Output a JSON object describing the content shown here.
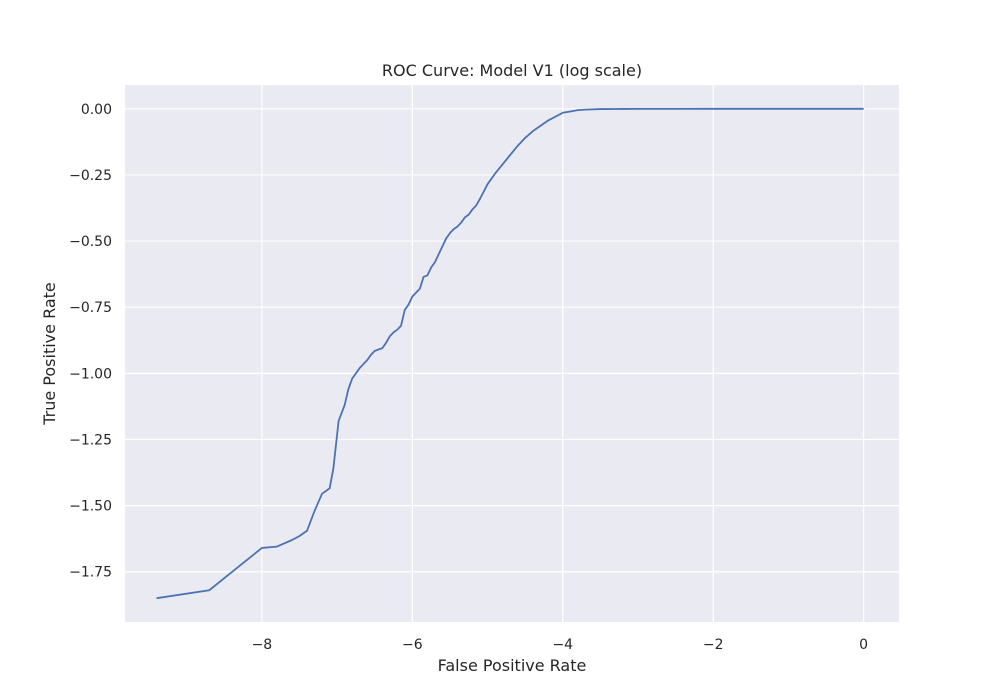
{
  "chart_data": {
    "type": "line",
    "title": "ROC Curve: Model V1 (log scale)",
    "xlabel": "False Positive Rate",
    "ylabel": "True Positive Rate",
    "xlim": [
      -9.82,
      0.47
    ],
    "ylim": [
      -1.94,
      0.09
    ],
    "xticks": [
      -8,
      -6,
      -4,
      -2,
      0
    ],
    "yticks": [
      0.0,
      -0.25,
      -0.5,
      -0.75,
      -1.0,
      -1.25,
      -1.5,
      -1.75
    ],
    "xtick_labels": [
      "−8",
      "−6",
      "−4",
      "−2",
      "0"
    ],
    "ytick_labels": [
      "0.00",
      "−0.25",
      "−0.50",
      "−0.75",
      "−1.00",
      "−1.25",
      "−1.50",
      "−1.75"
    ],
    "grid": true,
    "background": "#eaeaf2",
    "gridColor": "#ffffff",
    "series": [
      {
        "color": "#4c72b0",
        "x": [
          -9.4,
          -8.7,
          -8.35,
          -8.0,
          -7.8,
          -7.6,
          -7.5,
          -7.4,
          -7.3,
          -7.2,
          -7.1,
          -7.05,
          -6.98,
          -6.9,
          -6.85,
          -6.8,
          -6.7,
          -6.6,
          -6.55,
          -6.5,
          -6.45,
          -6.4,
          -6.35,
          -6.3,
          -6.25,
          -6.2,
          -6.15,
          -6.1,
          -6.05,
          -6.0,
          -5.95,
          -5.9,
          -5.85,
          -5.8,
          -5.75,
          -5.7,
          -5.65,
          -5.6,
          -5.55,
          -5.5,
          -5.45,
          -5.4,
          -5.35,
          -5.3,
          -5.25,
          -5.2,
          -5.15,
          -5.1,
          -5.0,
          -4.9,
          -4.8,
          -4.7,
          -4.6,
          -4.5,
          -4.4,
          -4.3,
          -4.2,
          -4.1,
          -4.0,
          -3.9,
          -3.8,
          -3.7,
          -3.6,
          -3.5,
          -3.4,
          -3.3,
          -3.2,
          -3.0,
          -2.5,
          -2.0,
          -1.0,
          0.0
        ],
        "y": [
          -1.85,
          -1.82,
          -1.74,
          -1.66,
          -1.655,
          -1.63,
          -1.615,
          -1.595,
          -1.52,
          -1.455,
          -1.435,
          -1.36,
          -1.18,
          -1.12,
          -1.06,
          -1.02,
          -0.98,
          -0.95,
          -0.93,
          -0.915,
          -0.91,
          -0.905,
          -0.885,
          -0.86,
          -0.845,
          -0.835,
          -0.82,
          -0.76,
          -0.74,
          -0.71,
          -0.695,
          -0.68,
          -0.635,
          -0.63,
          -0.6,
          -0.58,
          -0.55,
          -0.52,
          -0.49,
          -0.47,
          -0.455,
          -0.445,
          -0.43,
          -0.41,
          -0.4,
          -0.38,
          -0.365,
          -0.34,
          -0.285,
          -0.245,
          -0.21,
          -0.175,
          -0.14,
          -0.11,
          -0.085,
          -0.065,
          -0.045,
          -0.03,
          -0.015,
          -0.01,
          -0.005,
          -0.003,
          -0.002,
          -0.001,
          -0.001,
          -0.0007,
          -0.0005,
          -0.0003,
          -0.0002,
          -0.0001,
          -5e-05,
          0.0
        ]
      }
    ]
  }
}
